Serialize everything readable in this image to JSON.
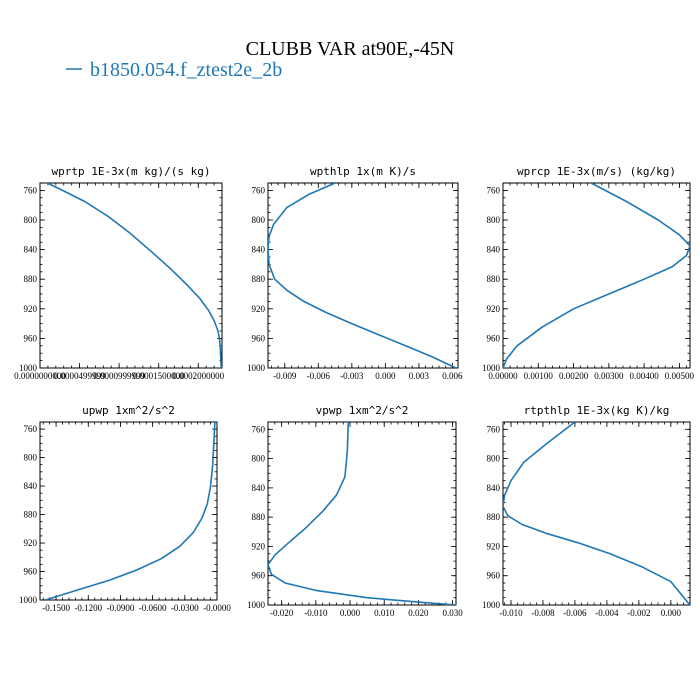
{
  "figure": {
    "title": "CLUBB VAR at90E,-45N",
    "legend": [
      {
        "name": "b1850.054.f_ztest2e_2b",
        "color": "#1f77b4"
      }
    ]
  },
  "chart_data": [
    {
      "type": "line",
      "title": "wprtp  1E-3x(m kg)/(s kg)",
      "series_name": "b1850.054.f_ztest2e_2b",
      "color": "#1f77b4",
      "xlim": [
        0.0,
        0.00023
      ],
      "ylim": [
        1000,
        750
      ],
      "y_inverted": true,
      "xticks": [
        "0.0000000000",
        "0.0000499999",
        "0.0000999999",
        "0.0001500000",
        "0.0002000000"
      ],
      "xtick_values": [
        0.0,
        5e-05,
        0.0001,
        0.00015,
        0.0002
      ],
      "yticks": [
        760,
        800,
        840,
        880,
        920,
        960,
        1000
      ],
      "x": [
        9.2e-06,
        2.86e-05,
        5.65e-05,
        8.59e-05,
        0.000114,
        0.000141,
        0.000165,
        0.000186,
        0.000202,
        0.000213,
        0.00022,
        0.000225,
        0.000227,
        0.000228,
        0.000229
      ],
      "y": [
        750,
        760,
        775,
        795,
        818,
        843,
        866,
        888,
        906,
        922,
        936,
        950,
        962,
        975,
        1000
      ]
    },
    {
      "type": "line",
      "title": "wpthlp  1x(m K)/s",
      "series_name": "b1850.054.f_ztest2e_2b",
      "color": "#1f77b4",
      "xlim": [
        -0.0105,
        0.0065
      ],
      "ylim": [
        1000,
        750
      ],
      "y_inverted": true,
      "xticks": [
        "-0.009",
        "-0.006",
        "-0.003",
        "0.000",
        "0.003",
        "0.006"
      ],
      "xtick_values": [
        -0.009,
        -0.006,
        -0.003,
        0.0,
        0.003,
        0.006
      ],
      "yticks": [
        760,
        800,
        840,
        880,
        920,
        960,
        1000
      ],
      "x": [
        -0.0045,
        -0.0068,
        -0.0088,
        -0.01,
        -0.0104,
        -0.0105,
        -0.0104,
        -0.0099,
        -0.0088,
        -0.0073,
        -0.0053,
        -0.003,
        -0.0006,
        0.0018,
        0.0042,
        0.0063
      ],
      "y": [
        750,
        765,
        783,
        806,
        822,
        838,
        860,
        880,
        895,
        910,
        925,
        940,
        955,
        970,
        985,
        1000
      ]
    },
    {
      "type": "line",
      "title": "wprcp  1E-3x(m/s) (kg/kg)",
      "series_name": "b1850.054.f_ztest2e_2b",
      "color": "#1f77b4",
      "xlim": [
        0.0,
        0.0053
      ],
      "ylim": [
        1000,
        750
      ],
      "y_inverted": true,
      "xticks": [
        "0.00000",
        "0.00100",
        "0.00200",
        "0.00300",
        "0.00400",
        "0.00500"
      ],
      "xtick_values": [
        0.0,
        0.001,
        0.002,
        0.003,
        0.004,
        0.005
      ],
      "yticks": [
        760,
        800,
        840,
        880,
        920,
        960,
        1000
      ],
      "x": [
        0.0025,
        0.0035,
        0.0044,
        0.005,
        0.0053,
        0.0052,
        0.0048,
        0.004,
        0.003,
        0.002,
        0.0011,
        0.0004,
        0.0001,
        0.0
      ],
      "y": [
        750,
        775,
        800,
        820,
        835,
        848,
        863,
        880,
        900,
        920,
        945,
        970,
        988,
        1000
      ]
    },
    {
      "type": "line",
      "title": "upwp  1xm^2/s^2",
      "series_name": "b1850.054.f_ztest2e_2b",
      "color": "#1f77b4",
      "xlim": [
        -0.165,
        0.0
      ],
      "ylim": [
        1000,
        750
      ],
      "y_inverted": true,
      "xticks": [
        "-0.1500",
        "-0.1200",
        "-0.0900",
        "-0.0600",
        "-0.0300",
        "-0.0000"
      ],
      "xtick_values": [
        -0.15,
        -0.12,
        -0.09,
        -0.06,
        -0.03,
        0.0
      ],
      "yticks": [
        760,
        800,
        840,
        880,
        920,
        960,
        1000
      ],
      "x": [
        -0.002,
        -0.003,
        -0.004,
        -0.006,
        -0.009,
        -0.014,
        -0.022,
        -0.035,
        -0.052,
        -0.075,
        -0.1,
        -0.13,
        -0.16
      ],
      "y": [
        750,
        780,
        810,
        840,
        865,
        885,
        905,
        925,
        942,
        958,
        972,
        986,
        1000
      ]
    },
    {
      "type": "line",
      "title": "vpwp  1xm^2/s^2",
      "series_name": "b1850.054.f_ztest2e_2b",
      "color": "#1f77b4",
      "xlim": [
        -0.024,
        0.031
      ],
      "ylim": [
        1000,
        750
      ],
      "y_inverted": true,
      "xticks": [
        "-0.020",
        "-0.010",
        "0.000",
        "0.010",
        "0.020",
        "0.030"
      ],
      "xtick_values": [
        -0.02,
        -0.01,
        0.0,
        0.01,
        0.02,
        0.03
      ],
      "yticks": [
        760,
        800,
        840,
        880,
        920,
        960,
        1000
      ],
      "x": [
        -0.0005,
        -0.0008,
        -0.0015,
        -0.004,
        -0.008,
        -0.013,
        -0.018,
        -0.022,
        -0.024,
        -0.023,
        -0.019,
        -0.01,
        0.005,
        0.02,
        0.031
      ],
      "y": [
        750,
        790,
        825,
        850,
        872,
        895,
        915,
        932,
        945,
        958,
        970,
        980,
        990,
        996,
        1000
      ]
    },
    {
      "type": "line",
      "title": "rtpthlp  1E-3x(kg K)/kg",
      "series_name": "b1850.054.f_ztest2e_2b",
      "color": "#1f77b4",
      "xlim": [
        -0.0105,
        0.0012
      ],
      "ylim": [
        1000,
        750
      ],
      "y_inverted": true,
      "xticks": [
        "-0.010",
        "-0.008",
        "-0.006",
        "-0.004",
        "-0.002",
        "0.000"
      ],
      "xtick_values": [
        -0.01,
        -0.008,
        -0.006,
        -0.004,
        -0.002,
        0.0
      ],
      "yticks": [
        760,
        800,
        840,
        880,
        920,
        960,
        1000
      ],
      "x": [
        -0.006,
        -0.0078,
        -0.0092,
        -0.01,
        -0.0104,
        -0.0105,
        -0.0102,
        -0.0093,
        -0.0078,
        -0.0058,
        -0.0038,
        -0.0018,
        0.0,
        0.0012
      ],
      "y": [
        750,
        780,
        805,
        830,
        850,
        865,
        878,
        890,
        902,
        915,
        930,
        948,
        968,
        1000
      ]
    }
  ]
}
